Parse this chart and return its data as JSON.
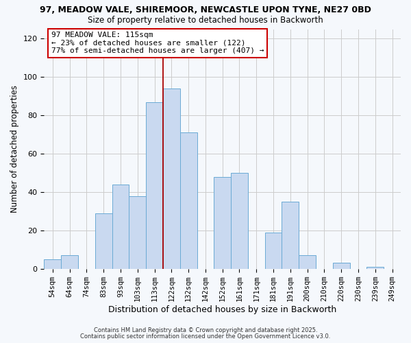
{
  "title_line1": "97, MEADOW VALE, SHIREMOOR, NEWCASTLE UPON TYNE, NE27 0BD",
  "title_line2": "Size of property relative to detached houses in Backworth",
  "xlabel": "Distribution of detached houses by size in Backworth",
  "ylabel": "Number of detached properties",
  "categories": [
    "54sqm",
    "64sqm",
    "74sqm",
    "83sqm",
    "93sqm",
    "103sqm",
    "113sqm",
    "122sqm",
    "132sqm",
    "142sqm",
    "152sqm",
    "161sqm",
    "171sqm",
    "181sqm",
    "191sqm",
    "200sqm",
    "210sqm",
    "220sqm",
    "230sqm",
    "239sqm",
    "249sqm"
  ],
  "values": [
    5,
    7,
    0,
    29,
    44,
    38,
    87,
    94,
    71,
    0,
    48,
    50,
    0,
    19,
    35,
    7,
    0,
    3,
    0,
    1,
    0
  ],
  "bar_color": "#c9d9f0",
  "bar_edge_color": "#6aaad4",
  "grid_color": "#cccccc",
  "bg_color": "#f5f8fc",
  "vline_x": 6.5,
  "vline_color": "#aa0000",
  "annotation_text": "97 MEADOW VALE: 115sqm\n← 23% of detached houses are smaller (122)\n77% of semi-detached houses are larger (407) →",
  "annotation_box_color": "#ffffff",
  "annotation_box_edge": "#cc0000",
  "ylim": [
    0,
    125
  ],
  "yticks": [
    0,
    20,
    40,
    60,
    80,
    100,
    120
  ],
  "footnote1": "Contains HM Land Registry data © Crown copyright and database right 2025.",
  "footnote2": "Contains public sector information licensed under the Open Government Licence v3.0."
}
